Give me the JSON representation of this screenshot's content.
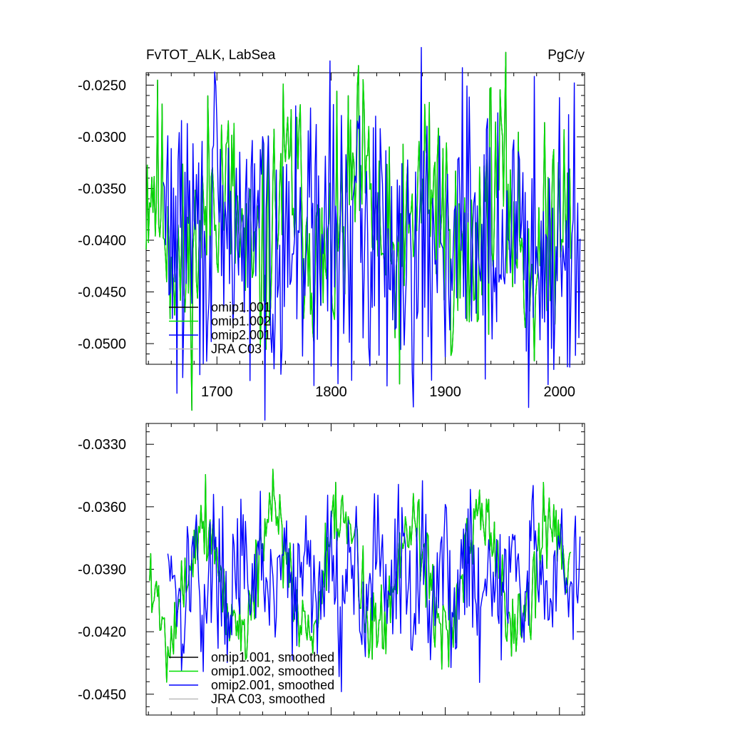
{
  "chart_data": [
    {
      "type": "line",
      "title": "FvTOT_ALK, LabSea",
      "units": "PgC/y",
      "xlabel": "",
      "ylabel": "",
      "xlim": [
        1638,
        2022
      ],
      "ylim": [
        -0.052,
        -0.0238
      ],
      "xticks": [
        1700,
        1800,
        1900,
        2000
      ],
      "xtick_labels": [
        "1700",
        "1800",
        "1900",
        "2000"
      ],
      "xminor_step": 20,
      "yticks": [
        -0.025,
        -0.03,
        -0.035,
        -0.04,
        -0.045,
        -0.05
      ],
      "ytick_labels": [
        "-0.0250",
        "-0.0300",
        "-0.0350",
        "-0.0400",
        "-0.0450",
        "-0.0500"
      ],
      "yminor_step": 0.001,
      "legend_position": "bottom-left",
      "grid": false,
      "series": [
        {
          "name": "omip1.001",
          "color": "#000000",
          "start": 1638,
          "end": 2010,
          "mean": -0.0385,
          "amp": 0.0045,
          "period": 61,
          "ph": 1.2,
          "noise": 0.0052,
          "seed": 11
        },
        {
          "name": "omip1.002",
          "color": "#00e000",
          "start": 1638,
          "end": 2010,
          "mean": -0.0385,
          "amp": 0.0045,
          "period": 61,
          "ph": 1.2,
          "noise": 0.0052,
          "seed": 11
        },
        {
          "name": "omip2.001",
          "color": "#0000ff",
          "start": 1653,
          "end": 2018,
          "mean": -0.0395,
          "amp": 0.002,
          "period": 20,
          "ph": 0.3,
          "noise": 0.0068,
          "seed": 29
        },
        {
          "name": "JRA C03",
          "color": "#bbbbbb",
          "start": 0,
          "end": 0
        }
      ]
    },
    {
      "type": "line",
      "title": "",
      "units": "",
      "xlabel": "",
      "ylabel": "",
      "xlim": [
        1638,
        2022
      ],
      "ylim": [
        -0.046,
        -0.032
      ],
      "xticks": [
        1700,
        1800,
        1900,
        2000
      ],
      "xtick_labels": [],
      "xminor_step": 20,
      "yticks": [
        -0.033,
        -0.036,
        -0.039,
        -0.042,
        -0.045
      ],
      "ytick_labels": [
        "-0.0330",
        "-0.0360",
        "-0.0390",
        "-0.0420",
        "-0.0450"
      ],
      "yminor_step": 0.0006,
      "legend_position": "bottom-left",
      "grid": false,
      "series": [
        {
          "name": "omip1.001, smoothed",
          "color": "#000000",
          "start": 1641,
          "end": 2010,
          "mean": -0.0393,
          "amp": 0.0027,
          "period": 61,
          "ph": 3.0,
          "noise": 0.0011,
          "seed": 5
        },
        {
          "name": "omip1.002, smoothed",
          "color": "#00e000",
          "start": 1641,
          "end": 2010,
          "mean": -0.0393,
          "amp": 0.0027,
          "period": 61,
          "ph": 3.0,
          "noise": 0.0011,
          "seed": 5
        },
        {
          "name": "omip2.001, smoothed",
          "color": "#0000ff",
          "start": 1657,
          "end": 2018,
          "mean": -0.0395,
          "amp": 0.0014,
          "period": 20,
          "ph": 1.0,
          "noise": 0.0016,
          "seed": 17
        },
        {
          "name": "JRA C03, smoothed",
          "color": "#bbbbbb",
          "start": 0,
          "end": 0
        }
      ]
    }
  ]
}
